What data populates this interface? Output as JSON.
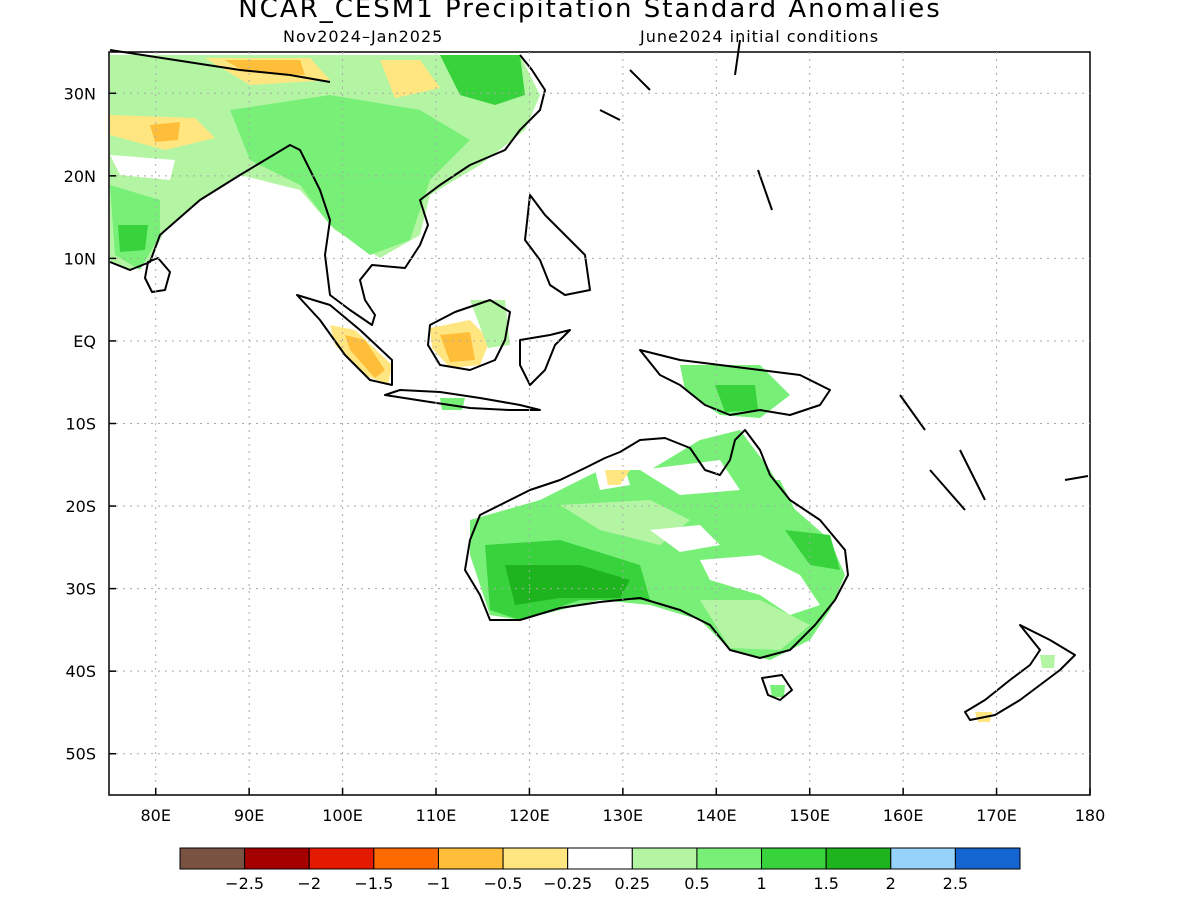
{
  "title": "NCAR_CESM1 Precipitation Standard Anomalies",
  "subtitle_left": "Nov2024–Jan2025",
  "subtitle_right": "June2024 initial conditions",
  "map": {
    "lon_range": [
      75,
      180
    ],
    "lat_range": [
      -55,
      35
    ],
    "lat_ticks": [
      {
        "value": 30,
        "label": "30N"
      },
      {
        "value": 20,
        "label": "20N"
      },
      {
        "value": 10,
        "label": "10N"
      },
      {
        "value": 0,
        "label": "EQ"
      },
      {
        "value": -10,
        "label": "10S"
      },
      {
        "value": -20,
        "label": "20S"
      },
      {
        "value": -30,
        "label": "30S"
      },
      {
        "value": -40,
        "label": "40S"
      },
      {
        "value": -50,
        "label": "50S"
      }
    ],
    "lon_ticks": [
      {
        "value": 80,
        "label": "80E"
      },
      {
        "value": 90,
        "label": "90E"
      },
      {
        "value": 100,
        "label": "100E"
      },
      {
        "value": 110,
        "label": "110E"
      },
      {
        "value": 120,
        "label": "120E"
      },
      {
        "value": 130,
        "label": "130E"
      },
      {
        "value": 140,
        "label": "140E"
      },
      {
        "value": 150,
        "label": "150E"
      },
      {
        "value": 160,
        "label": "160E"
      },
      {
        "value": 170,
        "label": "170E"
      },
      {
        "value": 180,
        "label": "180"
      }
    ]
  },
  "legend": {
    "colors": [
      "#7a5242",
      "#a50000",
      "#e31a00",
      "#ff6a00",
      "#ffbe3a",
      "#ffe680",
      "#ffffff",
      "#b4f5a4",
      "#78f078",
      "#37d23c",
      "#1eb41e",
      "#96d2fa",
      "#1464d2"
    ],
    "labels": [
      "−2.5",
      "−2",
      "−1.5",
      "−1",
      "−0.5",
      "−0.25",
      "0.25",
      "0.5",
      "1",
      "1.5",
      "2",
      "2.5"
    ]
  }
}
